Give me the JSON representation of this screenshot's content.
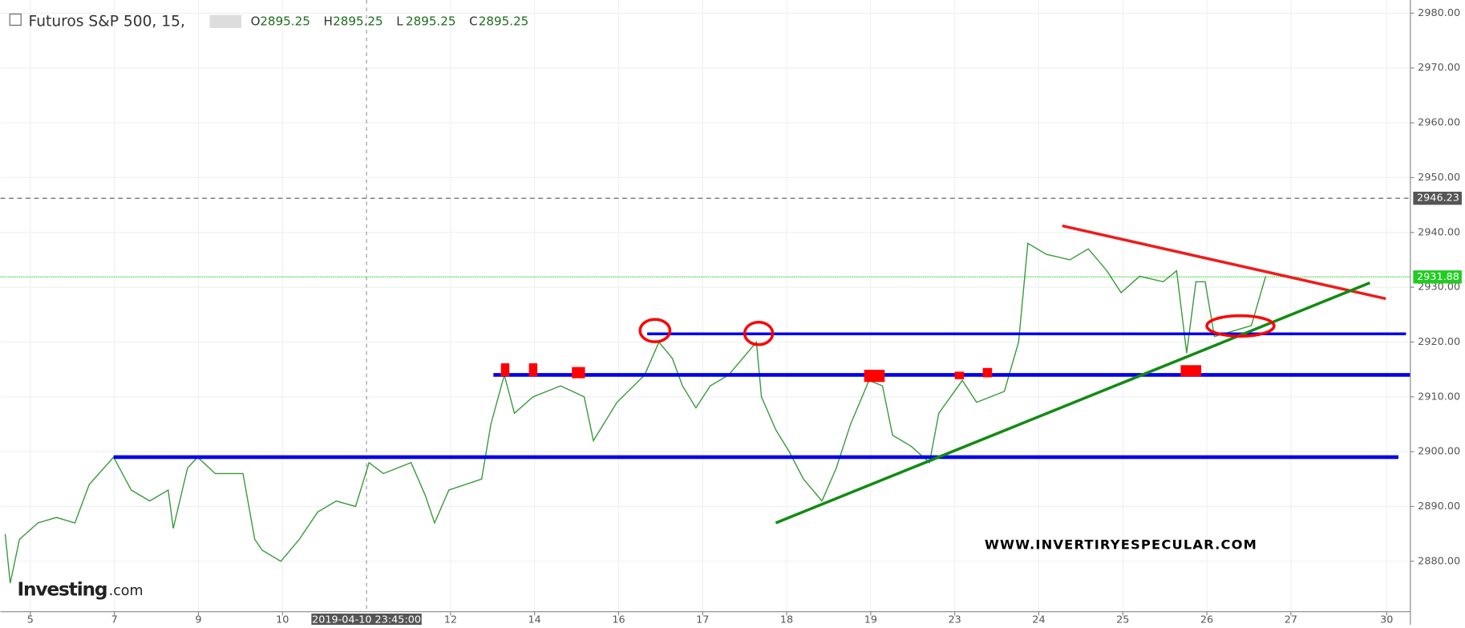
{
  "chart_data": {
    "type": "line",
    "title": "Futuros S&P 500, 15,",
    "ohlc": [
      {
        "key": "O",
        "value": 2895.25
      },
      {
        "key": "H",
        "value": 2895.25
      },
      {
        "key": "L",
        "value": 2895.25
      },
      {
        "key": "C",
        "value": 2895.25
      }
    ],
    "series": [
      {
        "color": "#3a9a3a",
        "x": [
          -0.3,
          -0.24,
          -0.13,
          0.09,
          0.31,
          0.53,
          0.7,
          0.99,
          1.2,
          1.42,
          1.64,
          1.7,
          1.87,
          1.99,
          2.2,
          2.53,
          2.67,
          2.76,
          2.98,
          3.2,
          3.42,
          3.64,
          3.87,
          4.03,
          4.2,
          4.53,
          4.7,
          4.81,
          4.98,
          5.37,
          5.48,
          5.64,
          5.76,
          5.98,
          6.31,
          6.59,
          6.7,
          6.98,
          7.31,
          7.48,
          7.64,
          7.76,
          7.92,
          8.09,
          8.31,
          8.64,
          8.7,
          8.87,
          9.03,
          9.2,
          9.42,
          9.59,
          9.76,
          9.98,
          10.14,
          10.26,
          10.48,
          10.7,
          10.81,
          11.09,
          11.26,
          11.59,
          11.76,
          11.87,
          12.09,
          12.37,
          12.59,
          12.81,
          12.98,
          13.2,
          13.48,
          13.64,
          13.76,
          13.87,
          13.98,
          14.09,
          14.31,
          14.53,
          14.7
        ],
        "values": [
          2885,
          2876,
          2884,
          2887,
          2888,
          2887,
          2894,
          2899,
          2893,
          2891,
          2893,
          2886,
          2897,
          2899,
          2896,
          2896,
          2884,
          2882,
          2880,
          2884,
          2889,
          2891,
          2890,
          2898,
          2896,
          2898,
          2892,
          2887,
          2893,
          2895,
          2905,
          2914,
          2907,
          2910,
          2912,
          2910,
          2902,
          2909,
          2914,
          2920,
          2917,
          2912,
          2908,
          2912,
          2914,
          2920,
          2910,
          2904,
          2900,
          2895,
          2891,
          2897,
          2905,
          2913,
          2912,
          2903,
          2901,
          2898,
          2907,
          2913,
          2909,
          2911,
          2920,
          2938,
          2936,
          2935,
          2937,
          2933,
          2929,
          2932,
          2931,
          2933,
          2918,
          2931,
          2931,
          2921,
          2922,
          2923,
          2932
        ]
      }
    ],
    "xlim": [
      -0.356,
      16.422
    ],
    "xticks": [
      {
        "value": 0,
        "label": "5"
      },
      {
        "value": 1,
        "label": "7"
      },
      {
        "value": 2,
        "label": "9"
      },
      {
        "value": 3,
        "label": "10"
      },
      {
        "value": 5,
        "label": "12"
      },
      {
        "value": 6,
        "label": "14"
      },
      {
        "value": 7,
        "label": "16"
      },
      {
        "value": 8,
        "label": "17"
      },
      {
        "value": 9,
        "label": "18"
      },
      {
        "value": 10,
        "label": "19"
      },
      {
        "value": 11,
        "label": "23"
      },
      {
        "value": 12,
        "label": "24"
      },
      {
        "value": 13,
        "label": "25"
      },
      {
        "value": 14,
        "label": "26"
      },
      {
        "value": 15,
        "label": "27"
      },
      {
        "value": 16.14,
        "label": "30"
      }
    ],
    "ylim": [
      2870.8,
      2982.4
    ],
    "yticks": [
      {
        "value": 2880,
        "label": "2880.00"
      },
      {
        "value": 2890,
        "label": "2890.00"
      },
      {
        "value": 2900,
        "label": "2900.00"
      },
      {
        "value": 2910,
        "label": "2910.00"
      },
      {
        "value": 2920,
        "label": "2920.00"
      },
      {
        "value": 2930,
        "label": "2930.00"
      },
      {
        "value": 2940,
        "label": "2940.00"
      },
      {
        "value": 2950,
        "label": "2950.00"
      },
      {
        "value": 2960,
        "label": "2960.00"
      },
      {
        "value": 2970,
        "label": "2970.00"
      },
      {
        "value": 2980,
        "label": "2980.00"
      }
    ],
    "grid": true,
    "crosshair": {
      "x": 4.0,
      "label": "2019-04-10 23:45:00"
    },
    "price_markers": [
      {
        "value": 2946.23,
        "color": "#555555"
      },
      {
        "value": 2931.88,
        "color": "#22cc22"
      }
    ],
    "levels": [
      {
        "y": 2899,
        "x": [
          0.99,
          16.28
        ],
        "color": "#0000ee"
      },
      {
        "y": 2914,
        "x": [
          5.51,
          16.42
        ],
        "color": "#0000ee"
      },
      {
        "y": 2921.5,
        "x": [
          7.34,
          16.37
        ],
        "color": "#0000ee"
      }
    ],
    "trendlines": [
      {
        "x": [
          12.28,
          16.13
        ],
        "y": [
          2941.2,
          2927.9
        ],
        "color": "#ee1c1c"
      },
      {
        "x": [
          8.87,
          15.94
        ],
        "y": [
          2887,
          2930.8
        ],
        "color": "#138a13"
      }
    ],
    "watermark": "WWW.INVERTIRYESPECULAR.COM",
    "logo": "Investing",
    "logo_suffix": ".com"
  }
}
